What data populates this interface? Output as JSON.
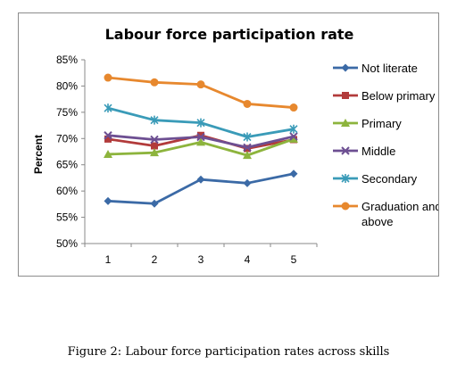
{
  "caption": "Figure 2: Labour force participation rates across skills",
  "chart_data": {
    "type": "line",
    "title": "Labour force participation rate",
    "xlabel": "",
    "ylabel": "Percent",
    "categories": [
      "1",
      "2",
      "3",
      "4",
      "5"
    ],
    "yticks": [
      "50%",
      "55%",
      "60%",
      "65%",
      "70%",
      "75%",
      "80%",
      "85%"
    ],
    "ylim": [
      50,
      85
    ],
    "grid": false,
    "legend_position": "right",
    "series": [
      {
        "name": "Not literate",
        "color": "#3b6aa6",
        "marker": "diamond",
        "values": [
          58.1,
          57.6,
          62.2,
          61.5,
          63.3
        ]
      },
      {
        "name": "Below primary",
        "color": "#b23b3b",
        "marker": "square",
        "values": [
          69.9,
          68.6,
          70.6,
          68.1,
          69.8
        ]
      },
      {
        "name": "Primary",
        "color": "#8db43d",
        "marker": "triangle",
        "values": [
          67.0,
          67.3,
          69.3,
          66.8,
          69.9
        ]
      },
      {
        "name": "Middle",
        "color": "#6d4f92",
        "marker": "x",
        "values": [
          70.6,
          69.8,
          70.3,
          68.3,
          70.4
        ]
      },
      {
        "name": "Secondary",
        "color": "#3a9bb8",
        "marker": "star",
        "values": [
          75.8,
          73.5,
          73.0,
          70.3,
          71.8
        ]
      },
      {
        "name": "Graduation and above",
        "color": "#e7882e",
        "marker": "circle",
        "values": [
          81.6,
          80.7,
          80.3,
          76.6,
          75.9
        ]
      }
    ]
  }
}
